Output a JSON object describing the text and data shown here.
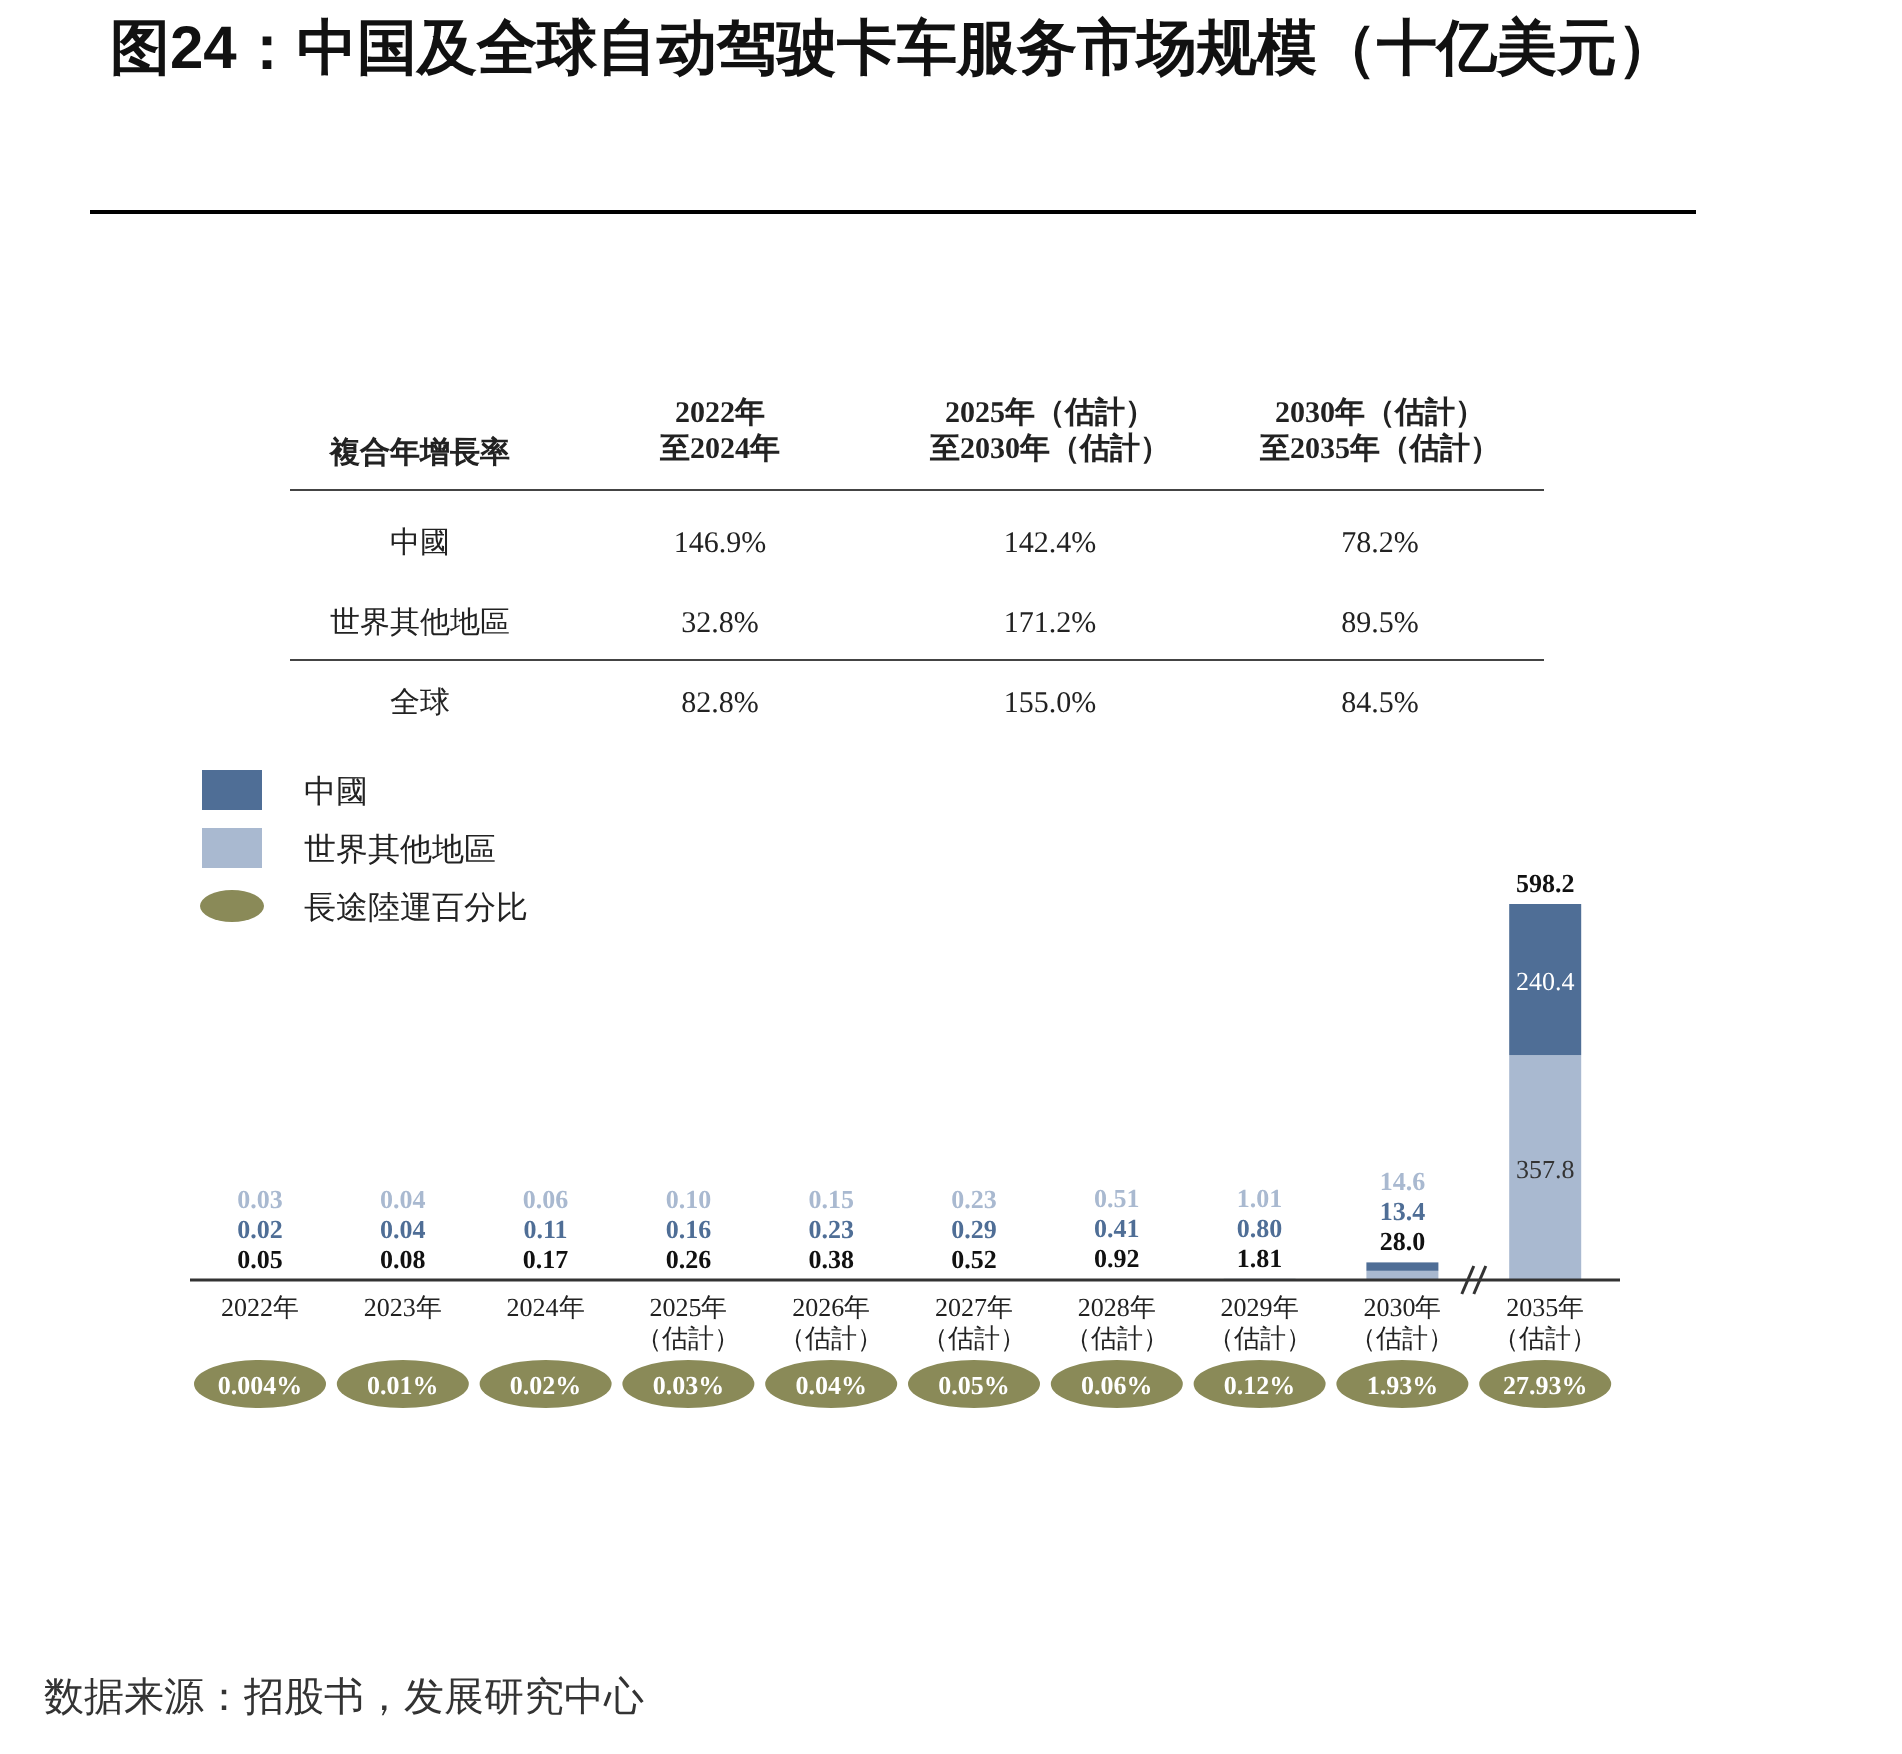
{
  "chart_data": [
    {
      "type": "bar",
      "stacked": true,
      "legend": "top left",
      "title": "图24：中国及全球自动驾驶卡车服务市场规模（十亿美元）",
      "categories": [
        "2022年",
        "2023年",
        "2024年",
        "2025年（估計）",
        "2026年（估計）",
        "2027年（估計）",
        "2028年（估計）",
        "2029年（估計）",
        "2030年（估計）",
        "2035年（估計）"
      ],
      "series": [
        {
          "name": "世界其他地區",
          "color": "#a9b9d0",
          "values": [
            0.03,
            0.04,
            0.06,
            0.1,
            0.15,
            0.23,
            0.51,
            1.01,
            14.6,
            357.8
          ],
          "value_labels": [
            "0.03",
            "0.04",
            "0.06",
            "0.10",
            "0.15",
            "0.23",
            "0.51",
            "1.01",
            "14.6",
            "357.8"
          ]
        },
        {
          "name": "中國",
          "color": "#4f6e96",
          "values": [
            0.02,
            0.04,
            0.11,
            0.16,
            0.23,
            0.29,
            0.41,
            0.8,
            13.4,
            240.4
          ],
          "value_labels": [
            "0.02",
            "0.04",
            "0.11",
            "0.16",
            "0.23",
            "0.29",
            "0.41",
            "0.80",
            "13.4",
            "240.4"
          ]
        }
      ],
      "totals": [
        "0.05",
        "0.08",
        "0.17",
        "0.26",
        "0.38",
        "0.52",
        "0.92",
        "1.81",
        "28.0",
        "598.2"
      ],
      "annotations": [
        "複合年增長率",
        "2022年至2024年",
        "2025年（估計）至2030年（估計）",
        "2030年（估計）至2035年（估計）",
        "中國",
        "146.9%",
        "142.4%",
        "78.2%",
        "世界其他地區",
        "32.8%",
        "171.2%",
        "89.5%",
        "全球",
        "82.8%",
        "155.0%",
        "84.5%",
        "数据来源：招股书，发展研究中心"
      ]
    },
    {
      "type": "other",
      "legend": "top left",
      "categories": [
        null,
        null,
        null,
        null,
        null,
        null,
        null,
        null,
        null,
        null
      ],
      "series": [
        {
          "name": "長途陸運百分比",
          "color": "#8a8a58",
          "values": [
            0.004,
            0.01,
            0.02,
            0.03,
            0.04,
            0.05,
            0.06,
            0.12,
            1.93,
            27.93
          ],
          "value_labels": [
            "0.004%",
            "0.01%",
            "0.02%",
            "0.03%",
            "0.04%",
            "0.05%",
            "0.06%",
            "0.12%",
            "1.93%",
            "27.93%"
          ]
        }
      ]
    }
  ]
}
